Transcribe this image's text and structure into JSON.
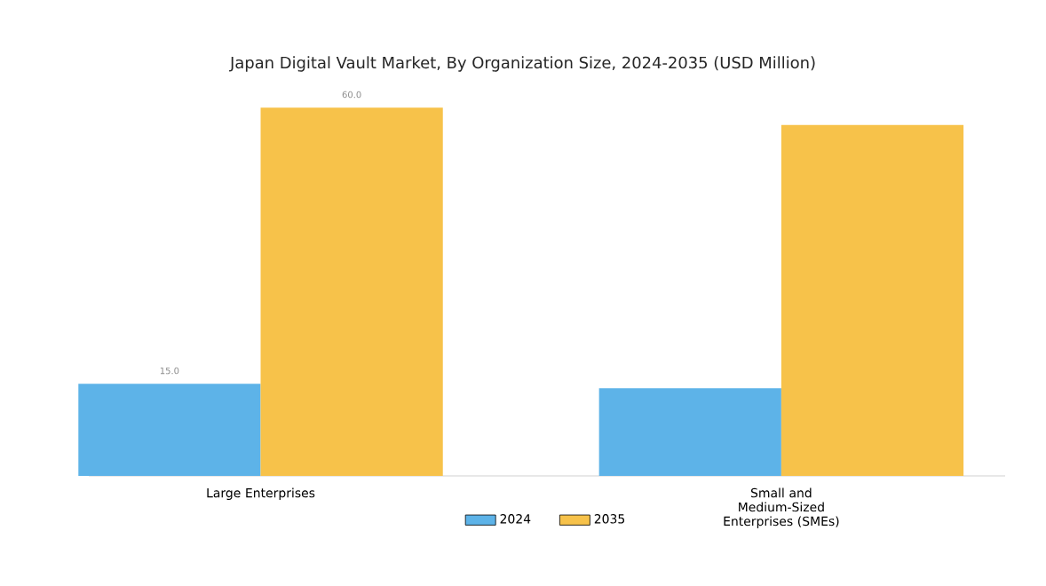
{
  "chart_data": {
    "type": "bar",
    "title": "Japan Digital Vault Market, By Organization Size, 2024-2035 (USD Million)",
    "categories": [
      "Large Enterprises",
      "Small and Medium-Sized Enterprises (SMEs)"
    ],
    "series": [
      {
        "name": "2024",
        "color": "#5db3e8",
        "values": [
          15.0,
          14.3
        ],
        "value_labels": [
          "15.0",
          null
        ]
      },
      {
        "name": "2035",
        "color": "#f7c24a",
        "values": [
          60.0,
          57.2
        ],
        "value_labels": [
          "60.0",
          null
        ]
      }
    ],
    "legend": "bottom"
  }
}
